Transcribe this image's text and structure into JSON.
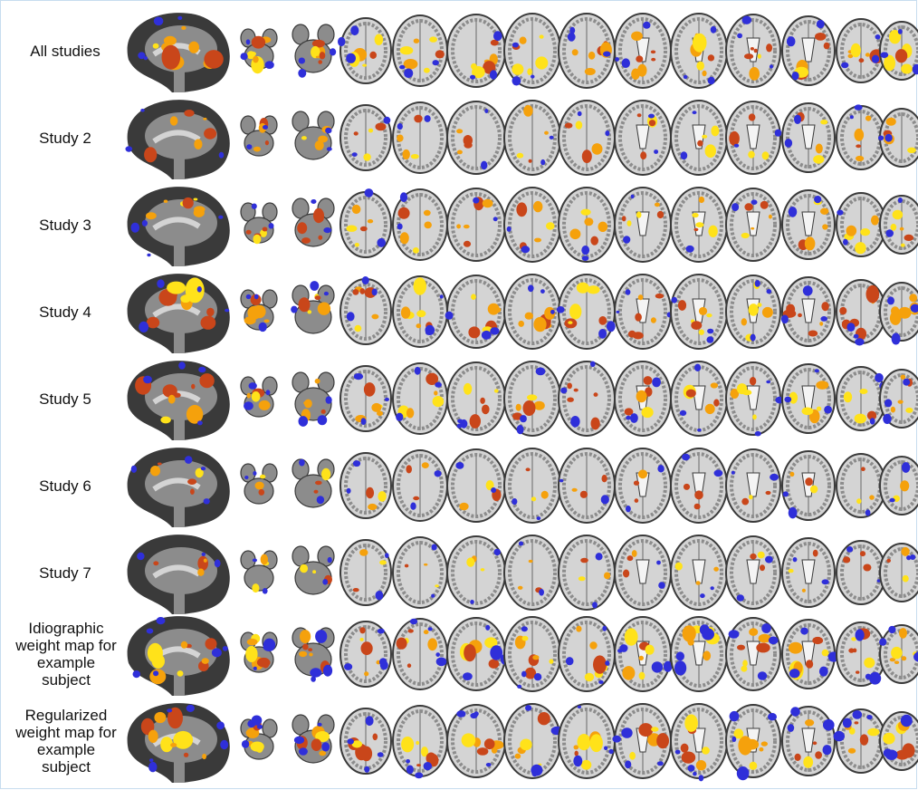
{
  "figure": {
    "rows": [
      {
        "label": "All studies",
        "pattern": 0
      },
      {
        "label": "Study 2",
        "pattern": 1
      },
      {
        "label": "Study 3",
        "pattern": 2
      },
      {
        "label": "Study 4",
        "pattern": 3
      },
      {
        "label": "Study 5",
        "pattern": 4
      },
      {
        "label": "Study 6",
        "pattern": 5
      },
      {
        "label": "Study 7",
        "pattern": 6
      },
      {
        "label": "Idiographic weight map for example subject",
        "pattern": 7
      },
      {
        "label": "Regularized weight map for example subject",
        "pattern": 8
      }
    ],
    "colors": {
      "positive_high": "#ffe21a",
      "positive_mid": "#f5a10c",
      "positive_low": "#c9461a",
      "negative": "#2f2fd9",
      "brain_dark": "#3a3a3a",
      "brain_mid": "#8c8c8c",
      "brain_light": "#d4d4d4",
      "frame": "#c7dcef"
    }
  }
}
